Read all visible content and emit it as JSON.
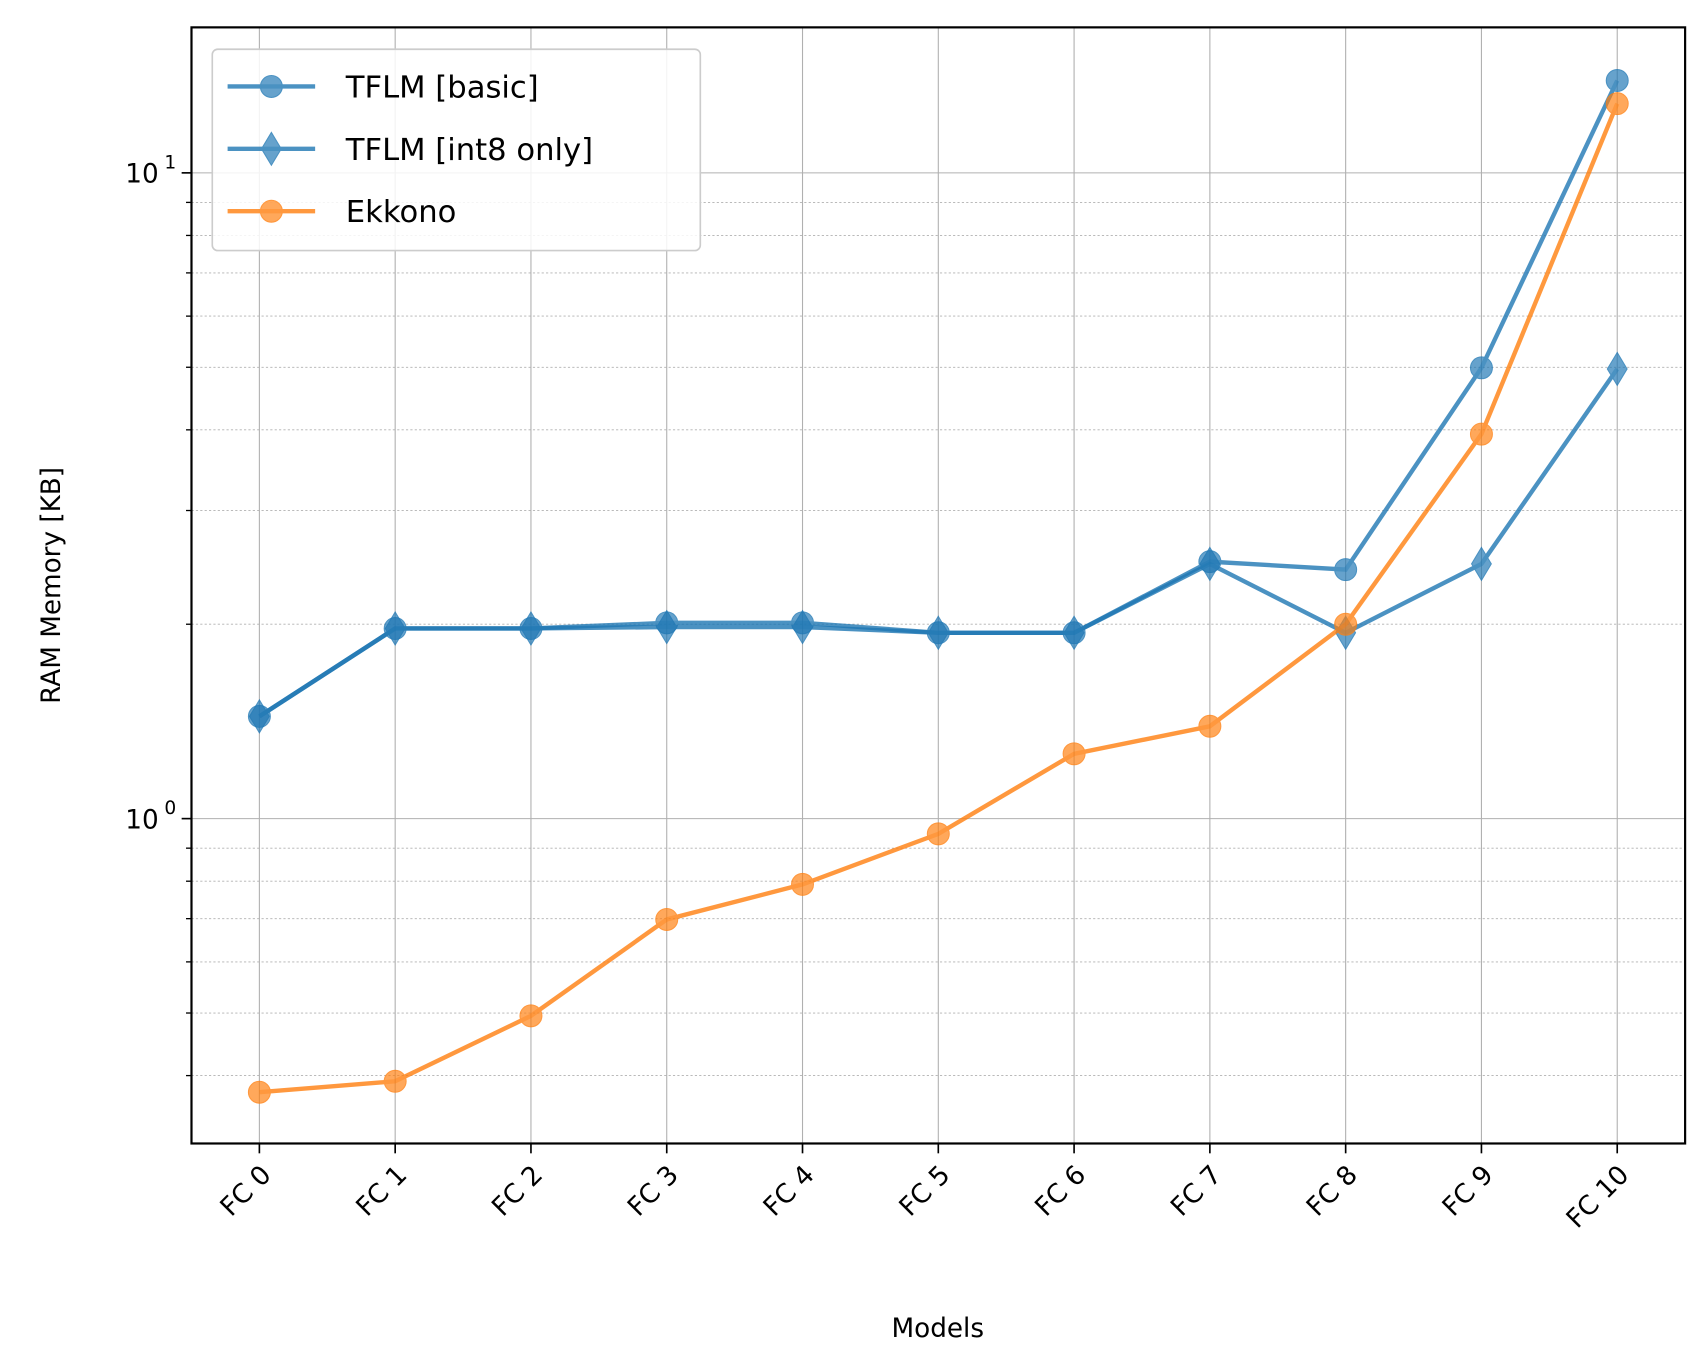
{
  "chart_data": {
    "type": "line",
    "title": "",
    "xlabel": "Models",
    "ylabel": "RAM Memory [KB]",
    "yscale": "log",
    "ylim": [
      0.314,
      16.8
    ],
    "grid": true,
    "legend_position": "top-left",
    "categories": [
      "FC 0",
      "FC 1",
      "FC 2",
      "FC 3",
      "FC 4",
      "FC 5",
      "FC 6",
      "FC 7",
      "FC 8",
      "FC 9",
      "FC 10"
    ],
    "y_ticks": [
      {
        "value": 1,
        "base": "10",
        "exp": "0"
      },
      {
        "value": 10,
        "base": "10",
        "exp": "1"
      }
    ],
    "series": [
      {
        "name": "TFLM [basic]",
        "color": "#1f77b4",
        "marker": "circle",
        "values": [
          1.44,
          1.97,
          1.97,
          2.01,
          2.01,
          1.94,
          1.94,
          2.5,
          2.43,
          4.99,
          13.9
        ]
      },
      {
        "name": "TFLM [int8 only]",
        "color": "#1f77b4",
        "marker": "thin-diamond",
        "values": [
          1.44,
          1.97,
          1.97,
          1.98,
          1.98,
          1.94,
          1.94,
          2.48,
          1.94,
          2.48,
          4.97
        ]
      },
      {
        "name": "Ekkono",
        "color": "#ff7f0e",
        "marker": "circle",
        "values": [
          0.377,
          0.392,
          0.495,
          0.698,
          0.791,
          0.947,
          1.26,
          1.39,
          2.0,
          3.94,
          12.8
        ]
      }
    ]
  }
}
